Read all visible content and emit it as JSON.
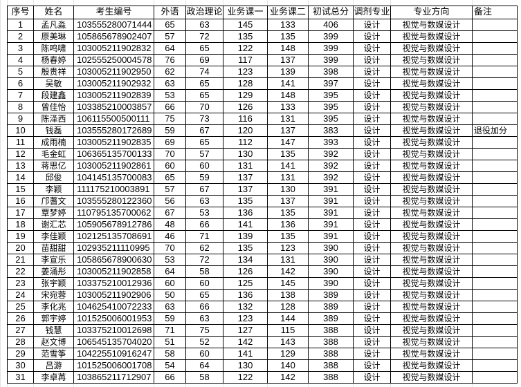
{
  "headers": [
    "序号",
    "姓名",
    "考生编号",
    "外语",
    "政治理论",
    "业务课一",
    "业务课二",
    "初试总分",
    "调剂专业",
    "专业方向",
    "备注"
  ],
  "rows": [
    [
      "1",
      "孟凡淼",
      "103555280071444",
      "65",
      "63",
      "145",
      "133",
      "406",
      "设计",
      "视觉与数媒设计",
      ""
    ],
    [
      "2",
      "原美琳",
      "105865678902407",
      "57",
      "72",
      "135",
      "135",
      "399",
      "设计",
      "视觉与数媒设计",
      ""
    ],
    [
      "3",
      "陈鸣啸",
      "103005211902832",
      "64",
      "65",
      "122",
      "148",
      "399",
      "设计",
      "视觉与数媒设计",
      ""
    ],
    [
      "4",
      "杨春婷",
      "102555250004578",
      "76",
      "69",
      "117",
      "137",
      "399",
      "设计",
      "视觉与数媒设计",
      ""
    ],
    [
      "5",
      "殷贵祥",
      "103005211902950",
      "62",
      "74",
      "123",
      "139",
      "398",
      "设计",
      "视觉与数媒设计",
      ""
    ],
    [
      "6",
      "吴敏",
      "103005211902932",
      "63",
      "65",
      "128",
      "141",
      "397",
      "设计",
      "视觉与数媒设计",
      ""
    ],
    [
      "7",
      "段建鑫",
      "103005211902839",
      "53",
      "65",
      "129",
      "148",
      "395",
      "设计",
      "视觉与数媒设计",
      ""
    ],
    [
      "8",
      "曾佳怡",
      "103385210003857",
      "66",
      "70",
      "126",
      "133",
      "395",
      "设计",
      "视觉与数媒设计",
      ""
    ],
    [
      "9",
      "陈泽西",
      "106115500500111",
      "75",
      "73",
      "116",
      "131",
      "395",
      "设计",
      "视觉与数媒设计",
      ""
    ],
    [
      "10",
      "钱磊",
      "103555280172689",
      "59",
      "67",
      "120",
      "137",
      "383",
      "设计",
      "视觉与数媒设计",
      "退役加分"
    ],
    [
      "11",
      "成雨楠",
      "103005211902835",
      "69",
      "65",
      "112",
      "147",
      "393",
      "设计",
      "视觉与数媒设计",
      ""
    ],
    [
      "12",
      "毛金虹",
      "106365135700133",
      "70",
      "57",
      "130",
      "135",
      "392",
      "设计",
      "视觉与数媒设计",
      ""
    ],
    [
      "13",
      "蒋思亿",
      "103005211902861",
      "60",
      "60",
      "131",
      "141",
      "392",
      "设计",
      "视觉与数媒设计",
      ""
    ],
    [
      "14",
      "邱俊",
      "104145135700083",
      "65",
      "59",
      "137",
      "131",
      "392",
      "设计",
      "视觉与数媒设计",
      ""
    ],
    [
      "15",
      "李颖",
      "111175210003891",
      "57",
      "67",
      "137",
      "130",
      "391",
      "设计",
      "视觉与数媒设计",
      ""
    ],
    [
      "16",
      "邝蓍文",
      "103555280122360",
      "56",
      "63",
      "135",
      "137",
      "391",
      "设计",
      "视觉与数媒设计",
      ""
    ],
    [
      "17",
      "覃梦婷",
      "110795135700062",
      "67",
      "53",
      "136",
      "135",
      "391",
      "设计",
      "视觉与数媒设计",
      ""
    ],
    [
      "18",
      "谢汇芯",
      "105905678912786",
      "48",
      "66",
      "141",
      "136",
      "391",
      "设计",
      "视觉与数媒设计",
      ""
    ],
    [
      "19",
      "李佳颖",
      "102125135708691",
      "46",
      "71",
      "139",
      "135",
      "391",
      "设计",
      "视觉与数媒设计",
      ""
    ],
    [
      "20",
      "苗甜甜",
      "102935211110995",
      "70",
      "62",
      "135",
      "123",
      "390",
      "设计",
      "视觉与数媒设计",
      ""
    ],
    [
      "21",
      "李宣乐",
      "105865678900630",
      "53",
      "72",
      "134",
      "131",
      "390",
      "设计",
      "视觉与数媒设计",
      ""
    ],
    [
      "22",
      "姜涌彤",
      "103005211902858",
      "64",
      "58",
      "126",
      "142",
      "390",
      "设计",
      "视觉与数媒设计",
      ""
    ],
    [
      "23",
      "张宇颖",
      "103375210012936",
      "60",
      "60",
      "125",
      "145",
      "390",
      "设计",
      "视觉与数媒设计",
      ""
    ],
    [
      "24",
      "宋宛蓉",
      "103005211902906",
      "50",
      "65",
      "136",
      "138",
      "389",
      "设计",
      "视觉与数媒设计",
      ""
    ],
    [
      "25",
      "李化兆",
      "104625410072233",
      "63",
      "66",
      "132",
      "128",
      "389",
      "设计",
      "视觉与数媒设计",
      ""
    ],
    [
      "26",
      "郭宇婷",
      "101525006001953",
      "59",
      "63",
      "123",
      "144",
      "389",
      "设计",
      "视觉与数媒设计",
      ""
    ],
    [
      "27",
      "钱慧",
      "103375210012698",
      "71",
      "75",
      "127",
      "115",
      "388",
      "设计",
      "视觉与数媒设计",
      ""
    ],
    [
      "28",
      "赵文博",
      "106545135704020",
      "51",
      "52",
      "142",
      "143",
      "388",
      "设计",
      "视觉与数媒设计",
      ""
    ],
    [
      "29",
      "范雪筝",
      "104225510916247",
      "58",
      "60",
      "141",
      "129",
      "388",
      "设计",
      "视觉与数媒设计",
      ""
    ],
    [
      "30",
      "吕游",
      "101525006001708",
      "54",
      "64",
      "130",
      "140",
      "388",
      "设计",
      "视觉与数媒设计",
      ""
    ],
    [
      "31",
      "李卓苒",
      "103865211712907",
      "66",
      "58",
      "122",
      "142",
      "388",
      "设计",
      "视觉与数媒设计",
      ""
    ]
  ]
}
